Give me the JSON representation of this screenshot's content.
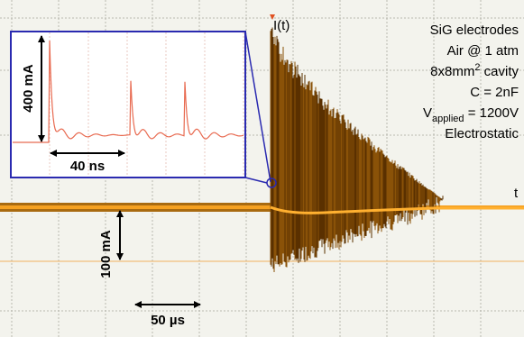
{
  "trace_label": "I(t)",
  "time_label": "t",
  "conditions": {
    "electrodes": "SiG electrodes",
    "atmosphere": "Air @ 1 atm",
    "cavity": {
      "base": "8x8mm",
      "sup": "2",
      "rest": " cavity"
    },
    "capacitance": "C = 2nF",
    "voltage": {
      "base": "V",
      "sub": "applied",
      "rest": " = 1200V"
    },
    "mode": "Electrostatic"
  },
  "scale_bars": {
    "inset_current": "400 mA",
    "inset_time": "40 ns",
    "main_current": "100 mA",
    "main_time": "50 µs"
  }
}
